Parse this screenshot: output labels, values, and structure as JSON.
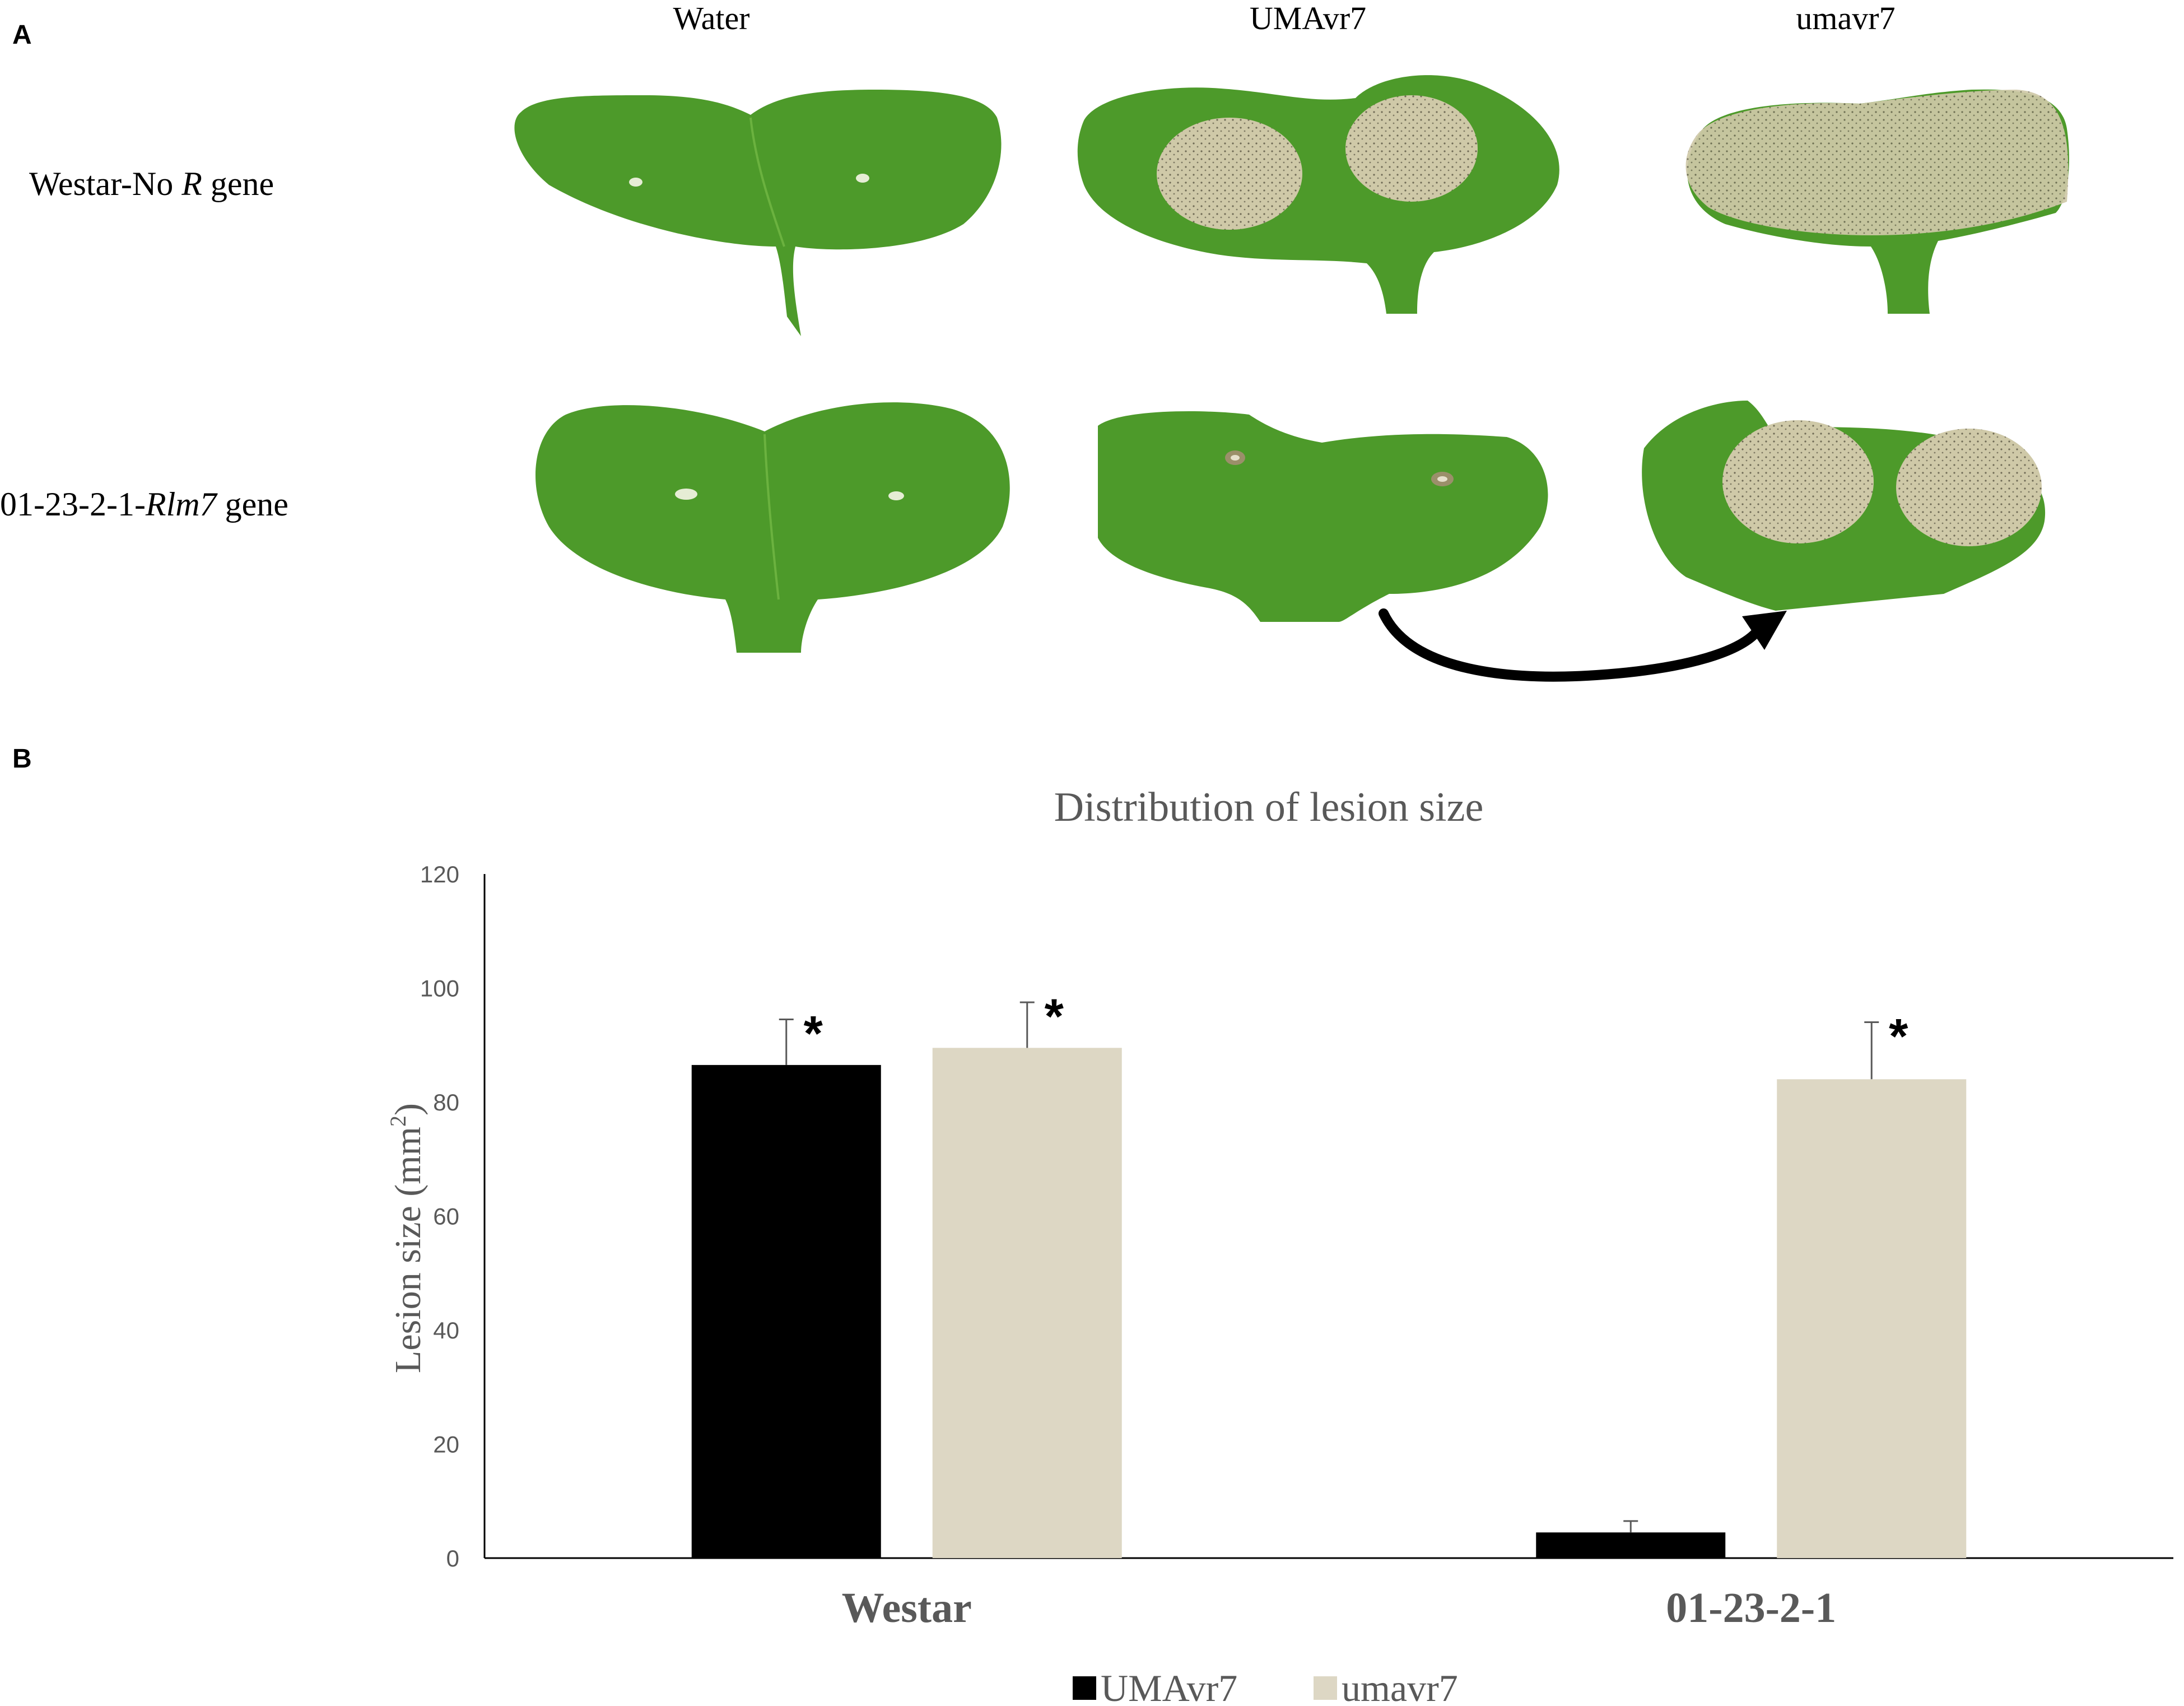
{
  "panel_a": {
    "letter": "A",
    "columns": [
      "Water",
      "UMAvr7",
      "umavr7"
    ],
    "rows": [
      {
        "prefix": "Westar-No ",
        "italic": "R",
        "suffix": " gene"
      },
      {
        "prefix": "01-23-2-1-",
        "italic": "Rlm7",
        "suffix": " gene"
      }
    ],
    "leaf_color": "#4d9a2a",
    "lesion_color": "#d9d3b6"
  },
  "panel_b": {
    "letter": "B"
  },
  "chart_data": {
    "type": "bar",
    "title": "Distribution of lesion size",
    "xlabel": "",
    "ylabel": "Lesion size (mm2)",
    "ylabel_main": "Lesion size (mm",
    "ylabel_sup": "2",
    "ylabel_end": ")",
    "categories": [
      "Westar",
      "01-23-2-1"
    ],
    "series": [
      {
        "name": "UMAvr7",
        "color": "#000000",
        "values": [
          86.5,
          4.5
        ],
        "errors": [
          8,
          2
        ],
        "significant": [
          true,
          false
        ]
      },
      {
        "name": "umavr7",
        "color": "#ddd7c4",
        "values": [
          89.5,
          84
        ],
        "errors": [
          8,
          10
        ],
        "significant": [
          true,
          true
        ]
      }
    ],
    "ylim": [
      0,
      120
    ],
    "yticks": [
      0,
      20,
      40,
      60,
      80,
      100,
      120
    ],
    "significance_mark": "*",
    "grid": false,
    "legend": "bottom"
  }
}
